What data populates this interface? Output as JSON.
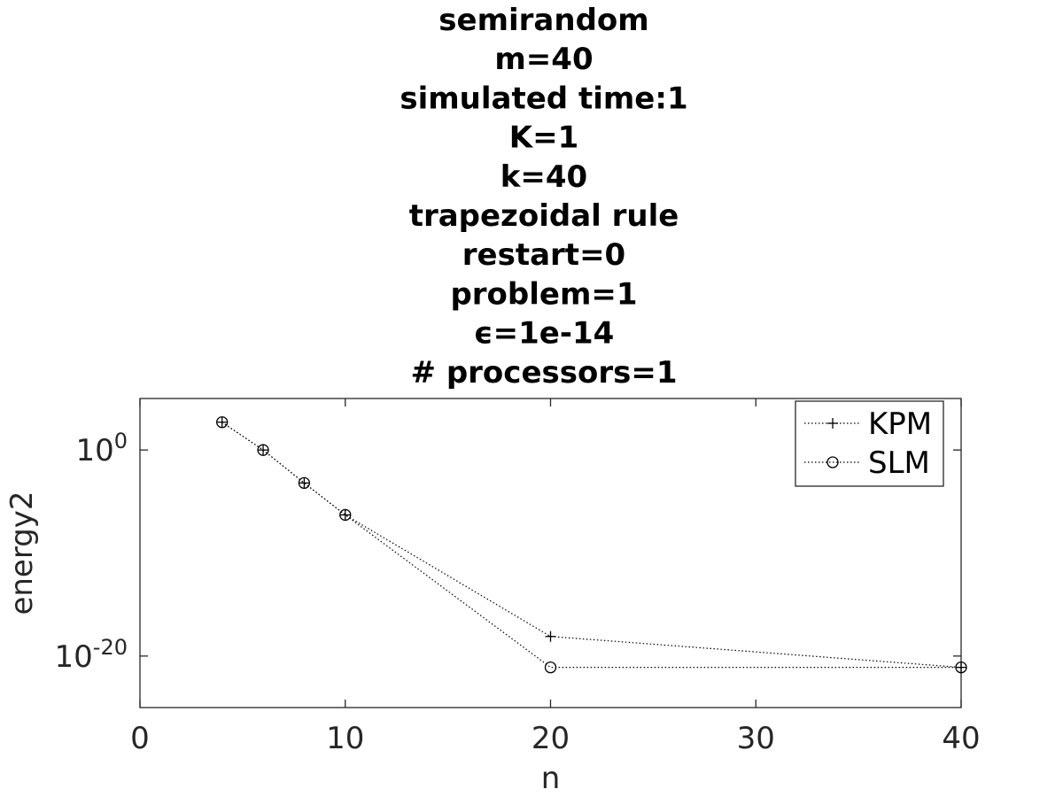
{
  "chart_data": {
    "type": "line",
    "title_lines": [
      "semirandom",
      "m=40",
      "simulated time:1",
      "K=1",
      "k=40",
      "trapezoidal rule",
      "restart=0",
      "problem=1",
      "ϵ=1e-14",
      "# processors=1"
    ],
    "xlabel": "n",
    "ylabel": "energy2",
    "x_categories": [
      "0",
      "10",
      "20",
      "30",
      "40"
    ],
    "x_tick_labels": [
      "0",
      "10",
      "20",
      "30",
      "40"
    ],
    "y_scale": "log",
    "y_tick_labels": [
      {
        "base": "10",
        "exp": "0",
        "value_exp": 0
      },
      {
        "base": "10",
        "exp": "-20",
        "value_exp": -20
      }
    ],
    "y_log_range": [
      -25,
      5
    ],
    "legend_position": "top-right",
    "series": [
      {
        "name": "KPM",
        "marker": "plus",
        "x": [
          "4",
          "6",
          "8",
          "10",
          "20",
          "40"
        ],
        "y_log10": [
          2.7,
          0,
          -3.2,
          -6.3,
          -18.1,
          -21.1
        ]
      },
      {
        "name": "SLM",
        "marker": "circle",
        "x": [
          "4",
          "6",
          "8",
          "10",
          "20",
          "40"
        ],
        "y_log10": [
          2.7,
          0,
          -3.2,
          -6.3,
          -21.1,
          -21.1
        ]
      }
    ],
    "line_style": "dotted",
    "color": "#000000",
    "box": true,
    "grid": false
  }
}
